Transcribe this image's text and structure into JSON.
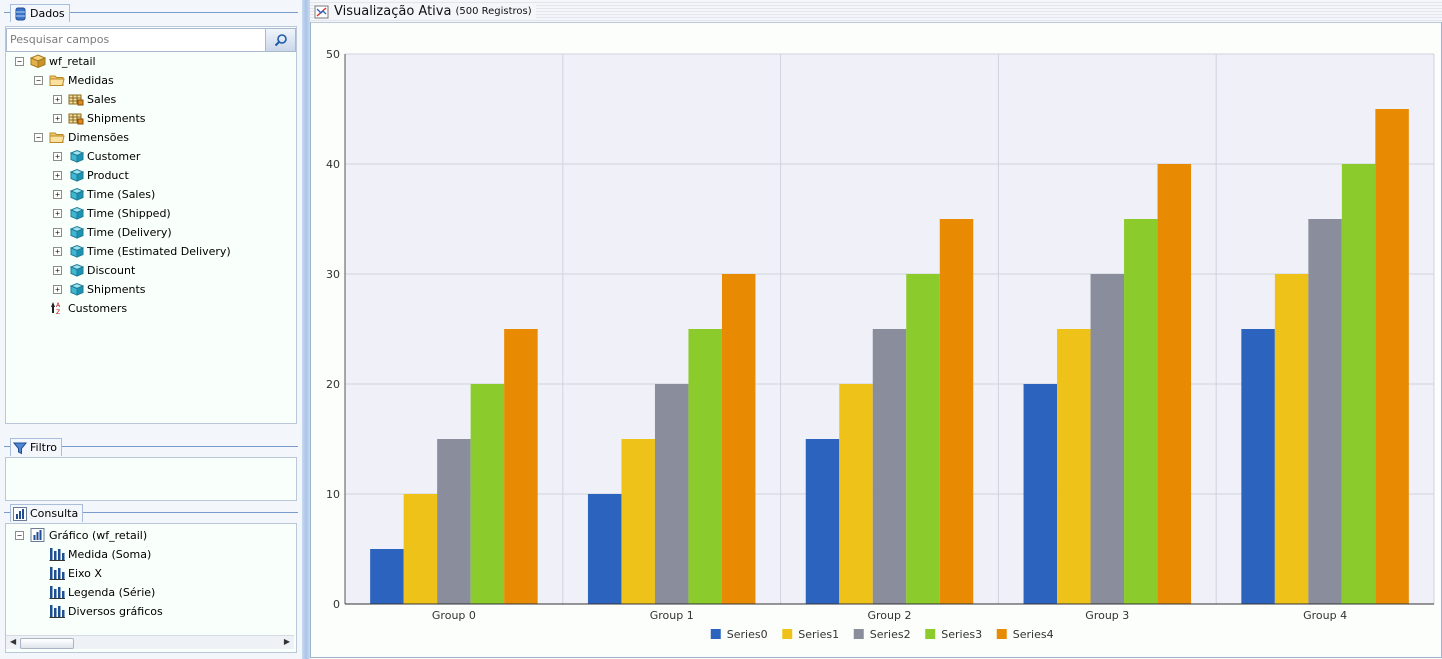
{
  "data_panel": {
    "title": "Dados",
    "search_placeholder": "Pesquisar campos",
    "tree": [
      {
        "label": "wf_retail",
        "icon": "cube-icon",
        "expander": "minus"
      },
      {
        "label": "Medidas",
        "icon": "folder-icon",
        "expander": "minus"
      },
      {
        "label": "Sales",
        "icon": "measure-icon",
        "expander": "plus"
      },
      {
        "label": "Shipments",
        "icon": "measure-icon",
        "expander": "plus"
      },
      {
        "label": "Dimensões",
        "icon": "folder-icon",
        "expander": "minus"
      },
      {
        "label": "Customer",
        "icon": "dimension-icon",
        "expander": "plus"
      },
      {
        "label": "Product",
        "icon": "dimension-icon",
        "expander": "plus"
      },
      {
        "label": "Time (Sales)",
        "icon": "dimension-icon",
        "expander": "plus"
      },
      {
        "label": "Time (Shipped)",
        "icon": "dimension-icon",
        "expander": "plus"
      },
      {
        "label": "Time (Delivery)",
        "icon": "dimension-icon",
        "expander": "plus"
      },
      {
        "label": "Time (Estimated Delivery)",
        "icon": "dimension-icon",
        "expander": "plus"
      },
      {
        "label": "Discount",
        "icon": "dimension-icon",
        "expander": "plus"
      },
      {
        "label": "Shipments",
        "icon": "dimension-icon",
        "expander": "plus"
      },
      {
        "label": "Customers",
        "icon": "sort-icon",
        "expander": "none"
      }
    ]
  },
  "filter_panel": {
    "title": "Filtro"
  },
  "query_panel": {
    "title": "Consulta",
    "tree": [
      {
        "label": "Gráfico (wf_retail)",
        "icon": "chart-icon",
        "expander": "minus"
      },
      {
        "label": "Medida (Soma)",
        "icon": "bar-icon",
        "expander": "none"
      },
      {
        "label": "Eixo X",
        "icon": "bar-icon",
        "expander": "none"
      },
      {
        "label": "Legenda (Série)",
        "icon": "bar-icon",
        "expander": "none"
      },
      {
        "label": "Diversos gráficos",
        "icon": "bar-icon",
        "expander": "none"
      }
    ]
  },
  "view": {
    "title": "Visualização Ativa",
    "subtitle": "(500 Registros)"
  },
  "colors": {
    "Series0": "#2b63bf",
    "Series1": "#eec219",
    "Series2": "#8a8e9c",
    "Series3": "#8bcb2c",
    "Series4": "#e88b03",
    "plot_bg": "#f0f1f8",
    "grid": "#cfd3dc"
  },
  "chart_data": {
    "type": "bar",
    "categories": [
      "Group 0",
      "Group 1",
      "Group 2",
      "Group 3",
      "Group 4"
    ],
    "series": [
      {
        "name": "Series0",
        "values": [
          5,
          10,
          15,
          20,
          25
        ]
      },
      {
        "name": "Series1",
        "values": [
          10,
          15,
          20,
          25,
          30
        ]
      },
      {
        "name": "Series2",
        "values": [
          15,
          20,
          25,
          30,
          35
        ]
      },
      {
        "name": "Series3",
        "values": [
          20,
          25,
          30,
          35,
          40
        ]
      },
      {
        "name": "Series4",
        "values": [
          25,
          30,
          35,
          40,
          45
        ]
      }
    ],
    "ylim": [
      0,
      50
    ],
    "yticks": [
      0,
      10,
      20,
      30,
      40,
      50
    ],
    "grid": true,
    "legend": "bottom"
  }
}
